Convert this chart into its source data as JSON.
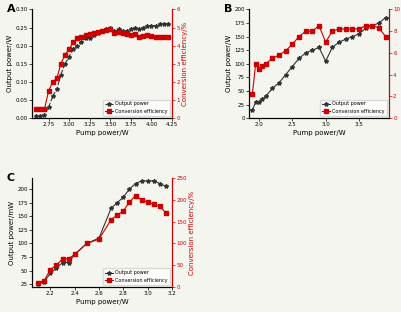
{
  "A": {
    "pump_power": [
      2.6,
      2.65,
      2.7,
      2.75,
      2.8,
      2.85,
      2.9,
      2.95,
      3.0,
      3.05,
      3.1,
      3.15,
      3.2,
      3.25,
      3.3,
      3.35,
      3.4,
      3.45,
      3.5,
      3.55,
      3.6,
      3.65,
      3.7,
      3.75,
      3.8,
      3.85,
      3.9,
      3.95,
      4.0,
      4.05,
      4.1,
      4.15,
      4.2
    ],
    "output_power": [
      0.005,
      0.005,
      0.01,
      0.03,
      0.06,
      0.08,
      0.12,
      0.15,
      0.17,
      0.19,
      0.2,
      0.21,
      0.22,
      0.22,
      0.23,
      0.235,
      0.24,
      0.245,
      0.25,
      0.24,
      0.245,
      0.24,
      0.24,
      0.245,
      0.25,
      0.245,
      0.25,
      0.255,
      0.255,
      0.255,
      0.26,
      0.26,
      0.26
    ],
    "conv_eff": [
      0.5,
      0.5,
      0.5,
      1.5,
      2.0,
      2.2,
      3.0,
      3.5,
      3.8,
      4.2,
      4.4,
      4.5,
      4.6,
      4.65,
      4.7,
      4.75,
      4.8,
      4.85,
      4.9,
      4.7,
      4.75,
      4.7,
      4.65,
      4.6,
      4.65,
      4.5,
      4.55,
      4.6,
      4.55,
      4.5,
      4.5,
      4.5,
      4.45
    ],
    "xlabel": "Pump power/W",
    "ylabel_left": "Output power/W",
    "ylabel_right": "Conversion efficiency/%",
    "xlim": [
      2.55,
      4.25
    ],
    "ylim_left": [
      0,
      0.3
    ],
    "ylim_right": [
      0,
      6
    ],
    "label": "A"
  },
  "B": {
    "pump_power": [
      1.9,
      1.95,
      2.0,
      2.05,
      2.1,
      2.2,
      2.3,
      2.4,
      2.5,
      2.6,
      2.7,
      2.8,
      2.9,
      3.0,
      3.1,
      3.2,
      3.3,
      3.4,
      3.5,
      3.6,
      3.7,
      3.8,
      3.9
    ],
    "output_power": [
      15,
      30,
      30,
      35,
      40,
      55,
      65,
      80,
      95,
      110,
      120,
      125,
      130,
      105,
      130,
      140,
      145,
      150,
      155,
      165,
      170,
      175,
      185
    ],
    "conv_eff": [
      2.2,
      5.0,
      4.5,
      4.8,
      5.0,
      5.5,
      5.8,
      6.2,
      6.8,
      7.5,
      8.0,
      8.0,
      8.5,
      7.0,
      8.0,
      8.2,
      8.2,
      8.2,
      8.2,
      8.5,
      8.5,
      8.3,
      7.5
    ],
    "xlabel": "Pump power/W",
    "ylabel_left": "Output power/W",
    "ylabel_right": "Conversion efficiency/%",
    "xlim": [
      1.85,
      3.95
    ],
    "ylim_left": [
      0,
      200
    ],
    "ylim_right": [
      0,
      10
    ],
    "label": "B"
  },
  "C": {
    "pump_power": [
      2.1,
      2.15,
      2.2,
      2.25,
      2.3,
      2.35,
      2.4,
      2.5,
      2.6,
      2.7,
      2.75,
      2.8,
      2.85,
      2.9,
      2.95,
      3.0,
      3.05,
      3.1,
      3.15
    ],
    "output_power": [
      25,
      30,
      45,
      55,
      65,
      65,
      80,
      100,
      110,
      165,
      175,
      185,
      200,
      210,
      215,
      215,
      215,
      210,
      205
    ],
    "conv_eff": [
      10,
      15,
      40,
      50,
      65,
      65,
      75,
      100,
      110,
      155,
      165,
      175,
      195,
      210,
      200,
      195,
      190,
      185,
      170
    ],
    "xlabel": "Pump power/W",
    "ylabel_left": "Output power/mW",
    "ylabel_right": "Conversion efficiency/%",
    "xlim": [
      2.05,
      3.2
    ],
    "ylim_left": [
      20,
      220
    ],
    "ylim_right": [
      0,
      250
    ],
    "label": "C"
  },
  "output_color": "#333333",
  "conv_color": "#cc0000",
  "legend_output": "Output power",
  "legend_conv": "Conversion efficiency",
  "background": "#f5f5f0"
}
